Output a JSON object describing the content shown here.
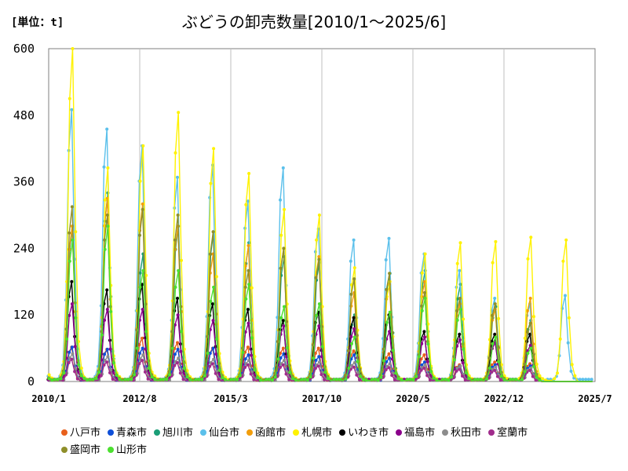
{
  "unit_label": "[単位：t]",
  "title": "ぶどうの卸売数量[2010/1～2025/6]",
  "chart_data": {
    "type": "line",
    "title": "ぶどうの卸売数量[2010/1～2025/6]",
    "unit": "[単位：t]",
    "ylim": [
      0,
      600
    ],
    "y_ticks": [
      "0",
      "120",
      "240",
      "360",
      "480",
      "600"
    ],
    "x_ticks": [
      "2010/1",
      "2012/8",
      "2015/3",
      "2017/10",
      "2020/5",
      "2022/12",
      "2025/7"
    ],
    "grid": "vertical",
    "legend_position": "bottom",
    "years": [
      2010,
      2011,
      2012,
      2013,
      2014,
      2015,
      2016,
      2017,
      2018,
      2019,
      2020,
      2021,
      2022,
      2023,
      2024,
      2025
    ],
    "series": [
      {
        "name": "八戸市",
        "color": "#E8601C",
        "peaks": [
          62,
          58,
          78,
          70,
          60,
          62,
          60,
          60,
          55,
          50,
          48,
          30,
          35,
          32,
          0,
          0
        ]
      },
      {
        "name": "青森市",
        "color": "#0E4FD8",
        "peaks": [
          62,
          58,
          60,
          58,
          60,
          48,
          50,
          45,
          48,
          42,
          35,
          28,
          30,
          28,
          0,
          0
        ]
      },
      {
        "name": "旭川市",
        "color": "#1B9E77",
        "peaks": [
          280,
          340,
          230,
          280,
          270,
          250,
          225,
          215,
          120,
          195,
          200,
          175,
          135,
          110,
          0,
          0
        ]
      },
      {
        "name": "仙台市",
        "color": "#5BC0EB",
        "peaks": [
          490,
          455,
          425,
          368,
          390,
          325,
          385,
          275,
          255,
          258,
          230,
          200,
          150,
          140,
          155,
          15
        ]
      },
      {
        "name": "函館市",
        "color": "#F29E0C",
        "peaks": [
          280,
          330,
          320,
          280,
          230,
          245,
          240,
          225,
          160,
          175,
          180,
          140,
          130,
          150,
          0,
          0
        ]
      },
      {
        "name": "札幌市",
        "color": "#FFF200",
        "peaks": [
          600,
          385,
          425,
          485,
          420,
          375,
          310,
          300,
          205,
          180,
          230,
          250,
          252,
          260,
          255,
          0
        ]
      },
      {
        "name": "いわき市",
        "color": "#000000",
        "peaks": [
          180,
          165,
          175,
          150,
          140,
          130,
          110,
          125,
          115,
          120,
          90,
          85,
          85,
          85,
          0,
          0
        ]
      },
      {
        "name": "福島市",
        "color": "#8B008B",
        "peaks": [
          140,
          130,
          130,
          120,
          110,
          105,
          100,
          100,
          95,
          90,
          80,
          75,
          70,
          65,
          0,
          0
        ]
      },
      {
        "name": "秋田市",
        "color": "#8C8C8C",
        "peaks": [
          50,
          45,
          48,
          42,
          40,
          38,
          38,
          35,
          34,
          32,
          30,
          28,
          26,
          24,
          0,
          0
        ]
      },
      {
        "name": "室蘭市",
        "color": "#A02C8C",
        "peaks": [
          40,
          35,
          38,
          34,
          32,
          30,
          30,
          28,
          26,
          25,
          24,
          22,
          20,
          20,
          0,
          0
        ]
      },
      {
        "name": "盛岡市",
        "color": "#8F8F2A",
        "peaks": [
          315,
          300,
          310,
          300,
          270,
          200,
          240,
          220,
          185,
          195,
          160,
          150,
          140,
          105,
          0,
          0
        ]
      },
      {
        "name": "山形市",
        "color": "#4CE030",
        "peaks": [
          255,
          280,
          200,
          200,
          170,
          175,
          135,
          140,
          80,
          125,
          150,
          130,
          80,
          60,
          0,
          0
        ]
      }
    ]
  }
}
